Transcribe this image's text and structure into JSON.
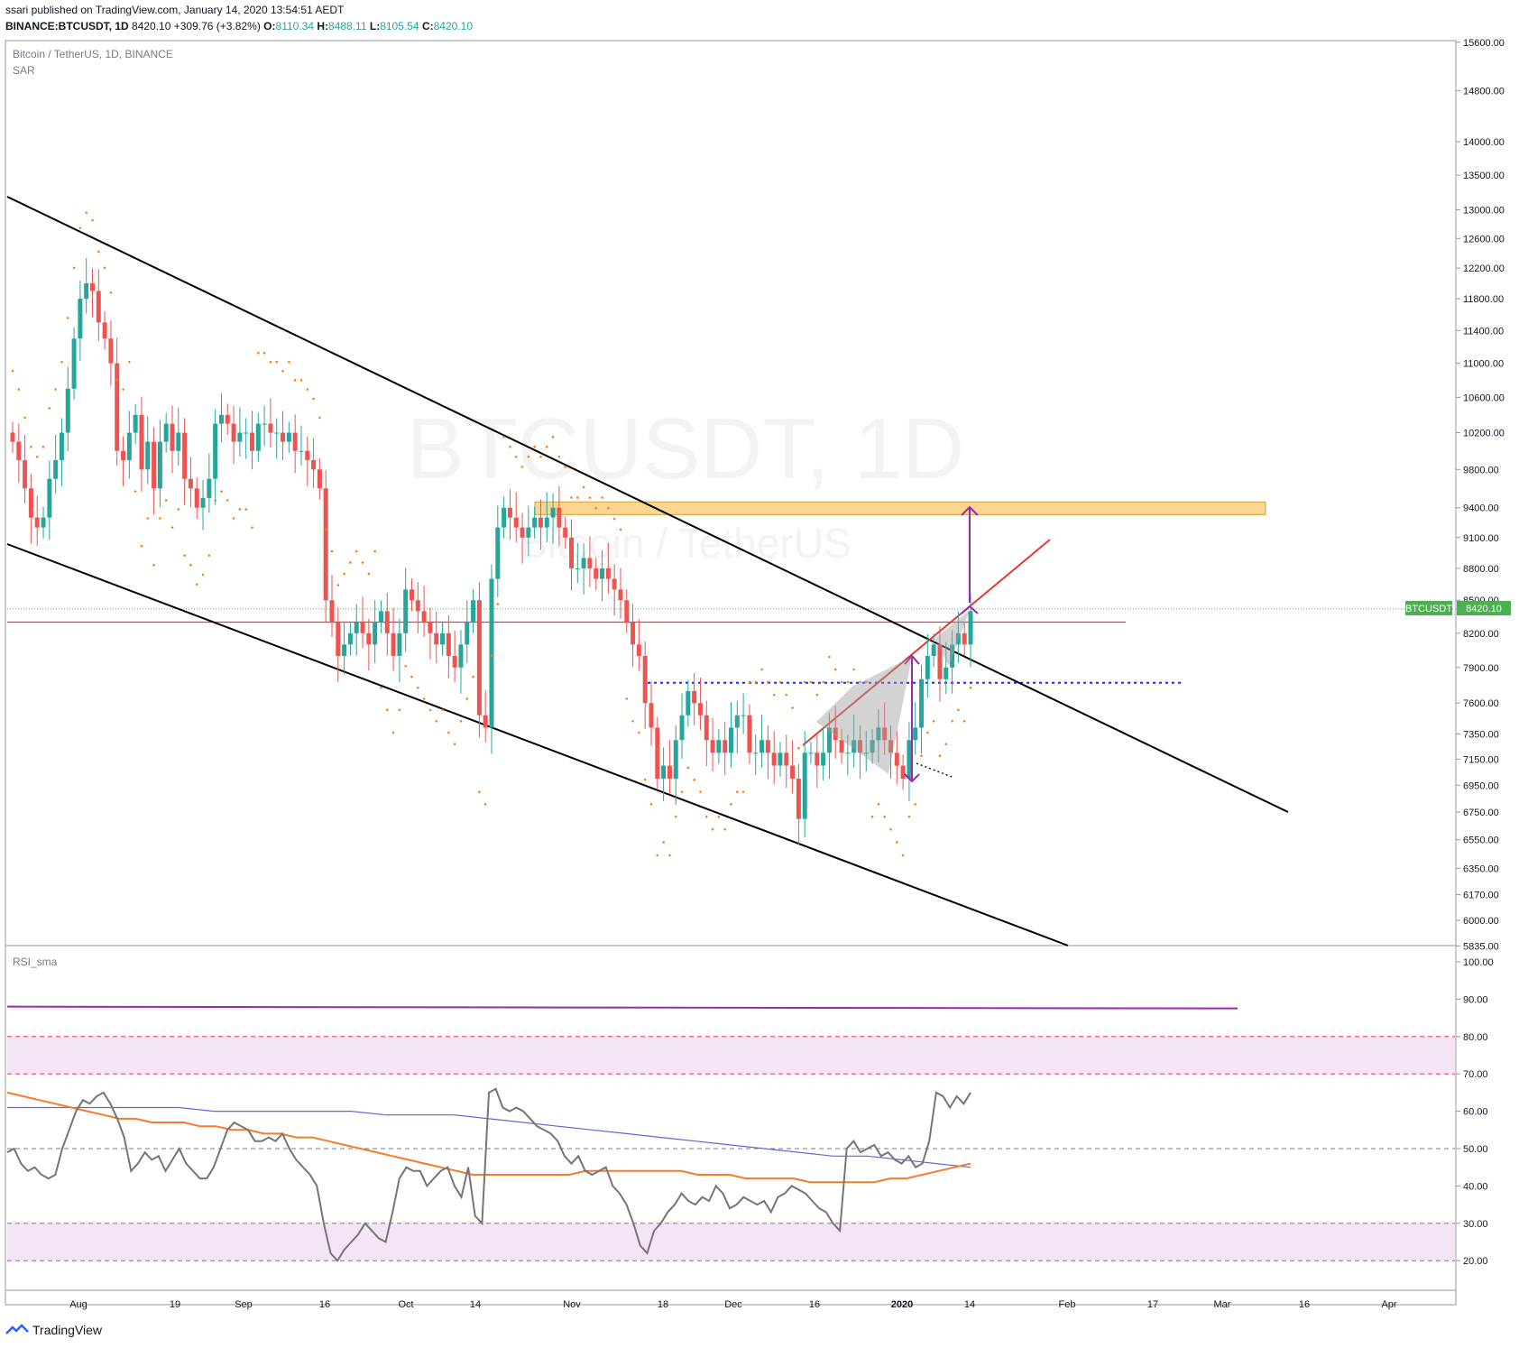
{
  "header": {
    "published_by": "ssari published on TradingView.com, January 14, 2020 13:54:51 AEDT",
    "symbol_line": "BINANCE:BTCUSDT, 1D",
    "last": "8420.10",
    "change": "+309.76 (+3.82%)",
    "open_label": "O:",
    "open": "8110.34",
    "high_label": "H:",
    "high": "8488.11",
    "low_label": "L:",
    "low": "8105.54",
    "close_label": "C:",
    "close": "8420.10"
  },
  "pane_main": {
    "legend_title": "Bitcoin / TetherUS, 1D, BINANCE",
    "legend_indicator": "SAR",
    "watermark_symbol": "BTCUSDT, 1D",
    "watermark_name": "Bitcoin / TetherUS",
    "price_tag_symbol": "BTCUSDT",
    "price_tag_value": "8420.10"
  },
  "pane_rsi": {
    "legend": "RSI_sma"
  },
  "footer": {
    "brand": "TradingView"
  },
  "colors": {
    "up": "#26a69a",
    "down": "#ef5350",
    "sar": "#ff7f0e",
    "trend": "#000000",
    "resistance_line": "#f23645",
    "zone_fill": "#f9c86b",
    "target_arrow": "#9c27b0",
    "dotted_level": "#1e22ff",
    "rsi_line": "#757575",
    "rsi_sma_orange": "#f57c2c",
    "rsi_sma_blue": "#5b6bd4",
    "rsi_band": "#f3e5f5",
    "rsi_top_line": "#9c27b0"
  },
  "chart_data": [
    {
      "type": "candlestick",
      "title": "Bitcoin / TetherUS, 1D, BINANCE",
      "y_ticks": [
        "15600.00",
        "14800.00",
        "14000.00",
        "13500.00",
        "13000.00",
        "12600.00",
        "12200.00",
        "11800.00",
        "11400.00",
        "11000.00",
        "10600.00",
        "10200.00",
        "9800.00",
        "9400.00",
        "9100.00",
        "8800.00",
        "8500.00",
        "8200.00",
        "7900.00",
        "7600.00",
        "7350.00",
        "7150.00",
        "6950.00",
        "6750.00",
        "6550.00",
        "6350.00",
        "6170.00",
        "6000.00",
        "5835.00"
      ],
      "x_ticks": [
        "Aug",
        "19",
        "Sep",
        "16",
        "Oct",
        "14",
        "Nov",
        "18",
        "Dec",
        "16",
        "2020",
        "14",
        "Feb",
        "17",
        "Mar",
        "16",
        "Apr"
      ],
      "ylim": [
        5835,
        15600
      ],
      "scale": "log",
      "last_price": 8420.1,
      "resistance_zone": [
        9330,
        9460
      ],
      "horizontal_level": 8300,
      "dotted_level": 7770,
      "target_price": 9400,
      "close": [
        10100,
        9900,
        9600,
        9300,
        9200,
        9300,
        9700,
        9900,
        10200,
        10700,
        11300,
        11800,
        12000,
        11900,
        11500,
        11300,
        11000,
        10000,
        9900,
        10200,
        10400,
        9800,
        10100,
        9600,
        10100,
        10300,
        10000,
        10200,
        9700,
        9600,
        9400,
        9500,
        9700,
        10300,
        10400,
        10300,
        10100,
        10200,
        10200,
        10000,
        10300,
        10300,
        10200,
        10200,
        10100,
        10200,
        10000,
        10000,
        9900,
        9800,
        9600,
        8500,
        8300,
        8000,
        8100,
        8200,
        8300,
        8200,
        8100,
        8300,
        8400,
        8200,
        8000,
        8200,
        8600,
        8500,
        8400,
        8300,
        8200,
        8100,
        8200,
        8000,
        7900,
        8100,
        8300,
        8500,
        7500,
        7400,
        8700,
        9200,
        9400,
        9300,
        9200,
        9100,
        9200,
        9300,
        9200,
        9300,
        9400,
        9200,
        9100,
        8800,
        8800,
        8900,
        8800,
        8700,
        8800,
        8700,
        8600,
        8500,
        8300,
        8100,
        8000,
        7600,
        7400,
        7000,
        7100,
        7000,
        7300,
        7500,
        7700,
        7600,
        7500,
        7300,
        7200,
        7300,
        7200,
        7400,
        7500,
        7500,
        7200,
        7200,
        7300,
        7200,
        7100,
        7200,
        7100,
        7000,
        6700,
        7200,
        7200,
        7100,
        7200,
        7400,
        7300,
        7200,
        7200,
        7300,
        7200,
        7200,
        7300,
        7400,
        7300,
        7200,
        7100,
        7000,
        7300,
        7400,
        7800,
        8000,
        8100,
        7800,
        7900,
        8100,
        8200,
        8100,
        8400
      ]
    },
    {
      "type": "line",
      "title": "RSI_sma",
      "y_ticks": [
        "100.00",
        "90.00",
        "80.00",
        "70.00",
        "60.00",
        "50.00",
        "40.00",
        "30.00",
        "20.00"
      ],
      "ylim": [
        10,
        102
      ],
      "levels": [
        20,
        30,
        50,
        70,
        80
      ],
      "top_line_value": 88,
      "rsi": [
        49,
        50,
        46,
        44,
        45,
        43,
        42,
        43,
        50,
        55,
        60,
        63,
        62,
        64,
        65,
        62,
        58,
        53,
        44,
        46,
        49,
        47,
        48,
        44,
        47,
        50,
        46,
        44,
        42,
        42,
        45,
        50,
        55,
        57,
        56,
        55,
        52,
        52,
        53,
        52,
        54,
        50,
        47,
        45,
        43,
        40,
        30,
        22,
        20,
        23,
        25,
        27,
        30,
        28,
        26,
        25,
        33,
        42,
        45,
        44,
        44,
        40,
        42,
        44,
        45,
        40,
        37,
        45,
        32,
        30,
        65,
        66,
        61,
        60,
        61,
        60,
        58,
        56,
        55,
        54,
        52,
        48,
        46,
        48,
        44,
        43,
        44,
        45,
        40,
        38,
        35,
        30,
        24,
        22,
        28,
        30,
        33,
        35,
        38,
        36,
        35,
        37,
        36,
        40,
        38,
        34,
        35,
        37,
        36,
        35,
        36,
        33,
        37,
        38,
        40,
        39,
        38,
        36,
        34,
        33,
        30,
        28,
        50,
        52,
        49,
        50,
        51,
        48,
        49,
        47,
        46,
        48,
        45,
        46,
        52,
        65,
        64,
        61,
        64,
        62,
        65
      ],
      "sma_orange": [
        65,
        64,
        63,
        62,
        61,
        60,
        59,
        58,
        58,
        57,
        57,
        57,
        56,
        56,
        55,
        55,
        54,
        54,
        53,
        53,
        52,
        51,
        50,
        49,
        48,
        47,
        46,
        45,
        44,
        43,
        43,
        43,
        43,
        43,
        43,
        43,
        44,
        44,
        44,
        44,
        44,
        44,
        44,
        43,
        43,
        43,
        42,
        42,
        42,
        42,
        41,
        41,
        41,
        41,
        41,
        42,
        42,
        43,
        44,
        45,
        46
      ],
      "sma_blue": [
        61,
        61,
        61,
        61,
        61,
        61,
        60,
        60,
        60,
        60,
        60,
        59,
        59,
        59,
        58,
        57,
        56,
        55,
        54,
        53,
        52,
        51,
        50,
        49,
        48,
        48,
        47,
        46,
        45
      ]
    }
  ]
}
